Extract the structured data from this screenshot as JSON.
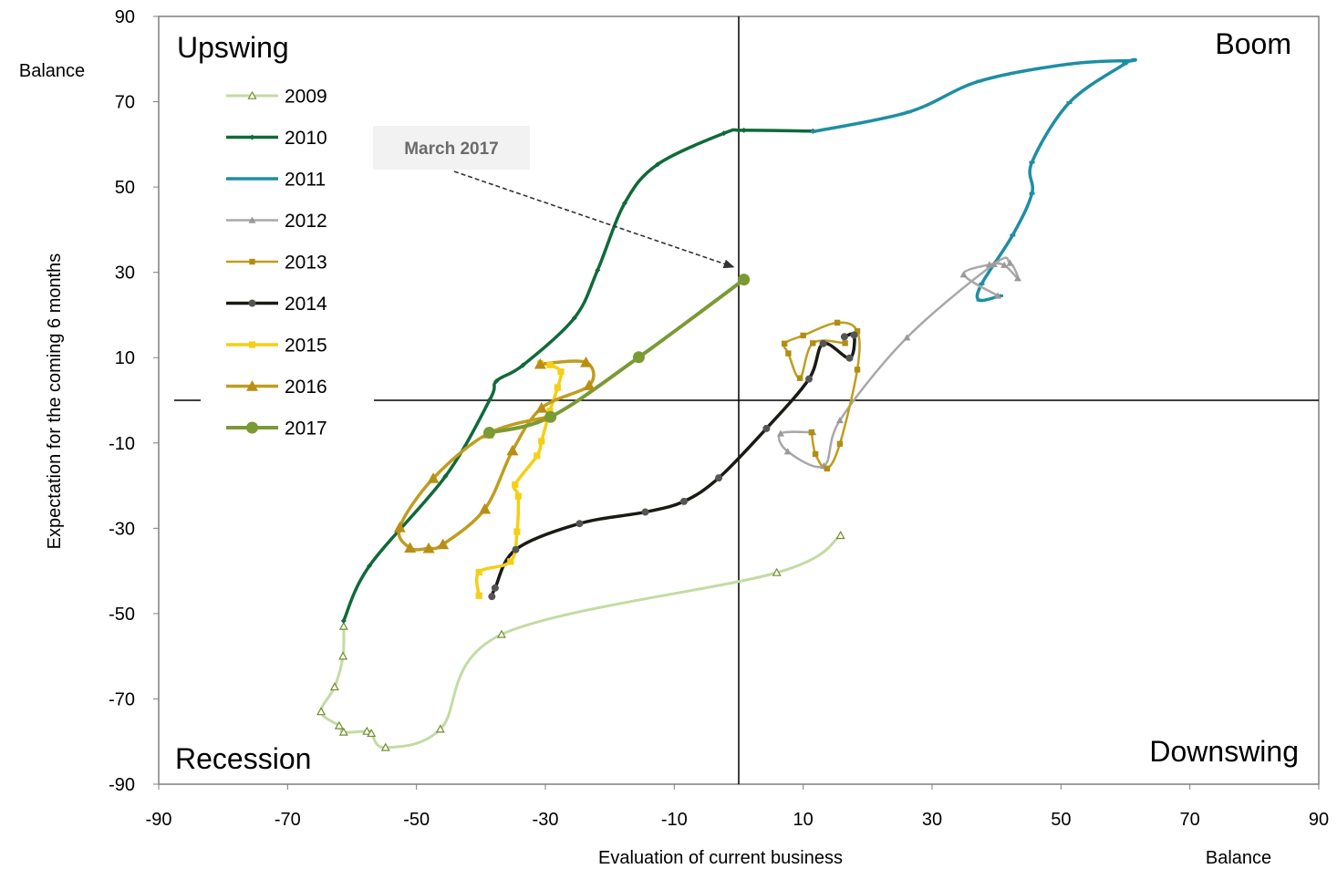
{
  "chart_data": {
    "type": "line",
    "title": "",
    "xlabel": "Evaluation of current business",
    "ylabel": "Expectation for the coming 6 months",
    "x_unit_label": "Balance",
    "y_unit_label": "Balance",
    "xlim": [
      -90,
      90
    ],
    "ylim": [
      -90,
      90
    ],
    "x_ticks": [
      "-90",
      "-70",
      "-50",
      "-30",
      "-10",
      "10",
      "30",
      "50",
      "70",
      "90"
    ],
    "y_ticks": [
      "90",
      "70",
      "50",
      "30",
      "10",
      "-10",
      "-30",
      "-50",
      "-70",
      "-90"
    ],
    "grid": false,
    "legend_position": "top-left",
    "quadrants": {
      "top_left": "Upswing",
      "top_right": "Boom",
      "bottom_left": "Recession",
      "bottom_right": "Downswing"
    },
    "annotation": {
      "text": "March 2017",
      "points_to": [
        0.8,
        28.3
      ]
    },
    "series": [
      {
        "name": "2009",
        "color": "#c3dba2",
        "marker": "triangle-open",
        "marker_color": "#6f8d2e",
        "line_width": 3,
        "points": [
          [
            -61.3,
            -53
          ],
          [
            -61.4,
            -60
          ],
          [
            -62.7,
            -67.2
          ],
          [
            -64.8,
            -73
          ],
          [
            -62,
            -76.3
          ],
          [
            -61.3,
            -77.8
          ],
          [
            -57.7,
            -77.6
          ],
          [
            -57,
            -78.1
          ],
          [
            -54.8,
            -81.4
          ],
          [
            -46.3,
            -77.1
          ],
          [
            -36.8,
            -54.9
          ],
          [
            5.9,
            -40.4
          ],
          [
            15.8,
            -31.7
          ]
        ]
      },
      {
        "name": "2010",
        "color": "#0f6a3a",
        "marker": "diamond",
        "marker_color": "#0f6a3a",
        "line_width": 3.5,
        "points": [
          [
            -61.3,
            -51.7
          ],
          [
            -57.3,
            -38.8
          ],
          [
            -45.5,
            -17.8
          ],
          [
            -38.6,
            0.2
          ],
          [
            -37.6,
            4.5
          ],
          [
            -33.5,
            8.2
          ],
          [
            -25.5,
            19.3
          ],
          [
            -21.9,
            30.5
          ],
          [
            -17.7,
            46.2
          ],
          [
            -12.6,
            55.3
          ],
          [
            -2.3,
            62.6
          ],
          [
            0.8,
            63.3
          ],
          [
            11.5,
            63.1
          ]
        ]
      },
      {
        "name": "2011",
        "color": "#1e8ea3",
        "marker": "dash",
        "marker_color": "#1e8ea3",
        "line_width": 3.5,
        "points": [
          [
            11.6,
            63
          ],
          [
            26.4,
            67.6
          ],
          [
            37.3,
            74.8
          ],
          [
            51.1,
            78.8
          ],
          [
            60.8,
            79.6
          ],
          [
            59.9,
            78.9
          ],
          [
            51.3,
            69.8
          ],
          [
            45.5,
            55.8
          ],
          [
            45.5,
            48.5
          ],
          [
            42.5,
            38.7
          ],
          [
            37.7,
            27.3
          ],
          [
            37.3,
            23.5
          ],
          [
            40.6,
            24.5
          ]
        ]
      },
      {
        "name": "2012",
        "color": "#a8a8a8",
        "marker": "triangle",
        "marker_color": "#9a9a9a",
        "line_width": 2.5,
        "points": [
          [
            40.2,
            24.5
          ],
          [
            34.9,
            29.5
          ],
          [
            38.9,
            31.8
          ],
          [
            41.2,
            31.7
          ],
          [
            43.3,
            28.6
          ],
          [
            42.1,
            32.2
          ],
          [
            39.6,
            31.9
          ],
          [
            26.1,
            14.7
          ],
          [
            15.7,
            -4.7
          ],
          [
            13.2,
            -15.4
          ],
          [
            7.6,
            -12
          ],
          [
            6.5,
            -7.8
          ],
          [
            11.5,
            -7.5
          ]
        ]
      },
      {
        "name": "2013",
        "color": "#c09d1e",
        "marker": "square",
        "marker_color": "#b18e12",
        "line_width": 2.5,
        "points": [
          [
            11.3,
            -7.5
          ],
          [
            11.9,
            -12.6
          ],
          [
            13.7,
            -16
          ],
          [
            15.7,
            -10.2
          ],
          [
            18.4,
            7.2
          ],
          [
            18.4,
            16.2
          ],
          [
            15.3,
            18.2
          ],
          [
            10,
            15.2
          ],
          [
            7.1,
            13.3
          ],
          [
            7.7,
            11
          ],
          [
            9.5,
            5.2
          ],
          [
            11.5,
            13.4
          ],
          [
            16.5,
            13.4
          ]
        ]
      },
      {
        "name": "2014",
        "color": "#1a1a14",
        "marker": "circle",
        "marker_color": "#555555",
        "line_width": 3.5,
        "points": [
          [
            -38.3,
            -46
          ],
          [
            -37.8,
            -44
          ],
          [
            -34.6,
            -35
          ],
          [
            -24.7,
            -28.9
          ],
          [
            -14.5,
            -26.2
          ],
          [
            -8.5,
            -23.7
          ],
          [
            -3.1,
            -18.2
          ],
          [
            4.3,
            -6.6
          ],
          [
            10.9,
            5
          ],
          [
            13.1,
            13.3
          ],
          [
            17.2,
            9.9
          ],
          [
            17.9,
            15.3
          ],
          [
            16.4,
            14.9
          ]
        ]
      },
      {
        "name": "2015",
        "color": "#f4cf14",
        "marker": "square",
        "marker_color": "#f4cf14",
        "line_width": 3.5,
        "points": [
          [
            -40.3,
            -45.8
          ],
          [
            -40.3,
            -40.3
          ],
          [
            -35.4,
            -37.8
          ],
          [
            -34.4,
            -30.8
          ],
          [
            -34.2,
            -22.5
          ],
          [
            -34.7,
            -19.8
          ],
          [
            -31.3,
            -13
          ],
          [
            -30.6,
            -9.6
          ],
          [
            -29.3,
            -2.5
          ],
          [
            -28.1,
            3
          ],
          [
            -27.6,
            6.7
          ],
          [
            -29.3,
            8.3
          ],
          [
            -30.8,
            8.6
          ]
        ]
      },
      {
        "name": "2016",
        "color": "#c09d1e",
        "marker": "triangle",
        "marker_color": "#b88f14",
        "line_width": 3.5,
        "points": [
          [
            -30.8,
            8.5
          ],
          [
            -23.7,
            8.9
          ],
          [
            -23.2,
            3.5
          ],
          [
            -30.6,
            -1.8
          ],
          [
            -35.1,
            -11.8
          ],
          [
            -39.4,
            -25.5
          ],
          [
            -45.9,
            -33.8
          ],
          [
            -48.1,
            -34.7
          ],
          [
            -51,
            -34.6
          ],
          [
            -52.6,
            -29.8
          ],
          [
            -47.4,
            -18.3
          ],
          [
            -38.9,
            -7.8
          ],
          [
            -29.7,
            -3.9
          ]
        ]
      },
      {
        "name": "2017",
        "color": "#7a9a34",
        "marker": "circle",
        "marker_color": "#7a9a34",
        "line_width": 4,
        "points": [
          [
            -38.7,
            -7.6
          ],
          [
            -29.2,
            -3.9
          ],
          [
            -15.5,
            10.1
          ],
          [
            0.8,
            28.3
          ]
        ]
      }
    ]
  }
}
